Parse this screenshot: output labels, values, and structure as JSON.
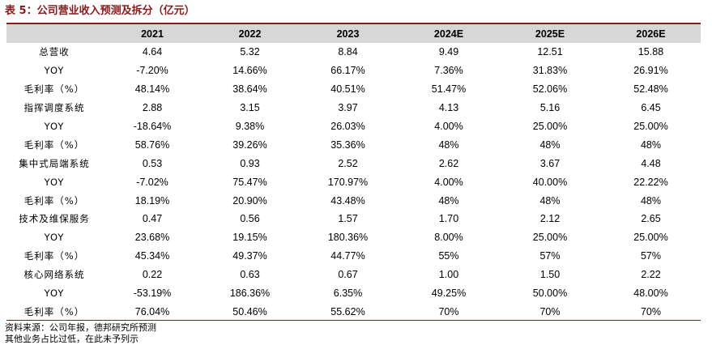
{
  "title": "表 5：公司营业收入预测及拆分（亿元）",
  "columns": [
    "",
    "2021",
    "2022",
    "2023",
    "2024E",
    "2025E",
    "2026E"
  ],
  "rows": [
    [
      "总营收",
      "4.64",
      "5.32",
      "8.84",
      "9.49",
      "12.51",
      "15.88"
    ],
    [
      "YOY",
      "-7.20%",
      "14.66%",
      "66.17%",
      "7.36%",
      "31.83%",
      "26.91%"
    ],
    [
      "毛利率（%）",
      "48.14%",
      "38.64%",
      "40.51%",
      "51.47%",
      "52.06%",
      "52.48%"
    ],
    [
      "指挥调度系统",
      "2.88",
      "3.15",
      "3.97",
      "4.13",
      "5.16",
      "6.45"
    ],
    [
      "YOY",
      "-18.64%",
      "9.38%",
      "26.03%",
      "4.00%",
      "25.00%",
      "25.00%"
    ],
    [
      "毛利率（%）",
      "58.76%",
      "39.26%",
      "35.36%",
      "48%",
      "48%",
      "48%"
    ],
    [
      "集中式局端系统",
      "0.53",
      "0.93",
      "2.52",
      "2.62",
      "3.67",
      "4.48"
    ],
    [
      "YOY",
      "-7.02%",
      "75.47%",
      "170.97%",
      "4.00%",
      "40.00%",
      "22.22%"
    ],
    [
      "毛利率（%）",
      "18.19%",
      "20.90%",
      "43.48%",
      "48%",
      "48%",
      "48%"
    ],
    [
      "技术及维保服务",
      "0.47",
      "0.56",
      "1.57",
      "1.70",
      "2.12",
      "2.65"
    ],
    [
      "YOY",
      "23.68%",
      "19.15%",
      "180.36%",
      "8.00%",
      "25.00%",
      "25.00%"
    ],
    [
      "毛利率（%）",
      "45.34%",
      "49.37%",
      "44.77%",
      "55%",
      "57%",
      "57%"
    ],
    [
      "核心网络系统",
      "0.22",
      "0.63",
      "0.67",
      "1.00",
      "1.50",
      "2.22"
    ],
    [
      "YOY",
      "-53.19%",
      "186.36%",
      "6.35%",
      "49.25%",
      "50.00%",
      "48.00%"
    ],
    [
      "毛利率（%）",
      "76.04%",
      "50.46%",
      "55.62%",
      "70%",
      "70%",
      "70%"
    ]
  ],
  "notes": {
    "source": "资料来源：公司年报，德邦研究所预测",
    "remark": "其他业务占比过低，在此未予列示"
  },
  "colors": {
    "accent": "#8b1a1a",
    "header_bg": "#d7d7d7"
  }
}
